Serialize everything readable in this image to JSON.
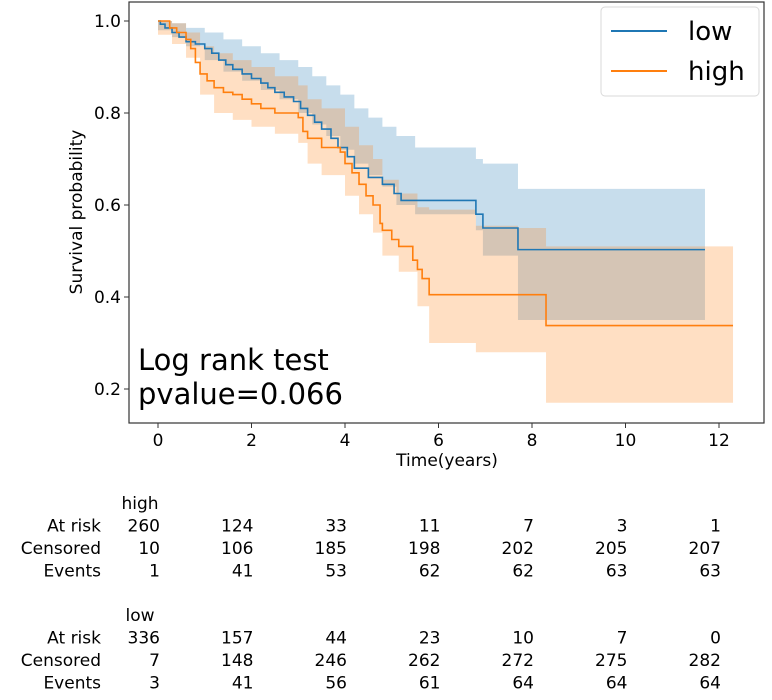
{
  "chart_data": {
    "type": "line",
    "subtype": "kaplan-meier",
    "title": "",
    "xlabel": "Time(years)",
    "ylabel": "Survival probability",
    "xlim": [
      -0.6,
      13.0
    ],
    "ylim": [
      0.14,
      1.04
    ],
    "xticks": [
      0,
      2,
      4,
      6,
      8,
      10,
      12
    ],
    "yticks": [
      0.2,
      0.4,
      0.6,
      0.8,
      1.0
    ],
    "ytick_labels": [
      "0.2",
      "0.4",
      "0.6",
      "0.8",
      "1.0"
    ],
    "grid": false,
    "legend": {
      "position": "top-right",
      "entries": [
        "low",
        "high"
      ]
    },
    "annotation": [
      "Log rank test",
      "pvalue=0.066"
    ],
    "series": [
      {
        "name": "low",
        "color": "#1f77b4",
        "ci_color": "#1f77b4",
        "steps": [
          [
            0.0,
            1.0
          ],
          [
            0.05,
            0.993
          ],
          [
            0.15,
            0.985
          ],
          [
            0.3,
            0.975
          ],
          [
            0.45,
            0.965
          ],
          [
            0.6,
            0.955
          ],
          [
            0.8,
            0.95
          ],
          [
            1.0,
            0.94
          ],
          [
            1.15,
            0.93
          ],
          [
            1.3,
            0.915
          ],
          [
            1.45,
            0.905
          ],
          [
            1.6,
            0.895
          ],
          [
            1.8,
            0.885
          ],
          [
            2.0,
            0.875
          ],
          [
            2.2,
            0.865
          ],
          [
            2.35,
            0.855
          ],
          [
            2.5,
            0.845
          ],
          [
            2.7,
            0.835
          ],
          [
            2.9,
            0.825
          ],
          [
            3.05,
            0.81
          ],
          [
            3.2,
            0.795
          ],
          [
            3.35,
            0.78
          ],
          [
            3.5,
            0.765
          ],
          [
            3.7,
            0.745
          ],
          [
            3.85,
            0.725
          ],
          [
            4.05,
            0.705
          ],
          [
            4.2,
            0.68
          ],
          [
            4.5,
            0.66
          ],
          [
            4.8,
            0.645
          ],
          [
            5.05,
            0.625
          ],
          [
            5.2,
            0.61
          ],
          [
            6.8,
            0.58
          ],
          [
            6.95,
            0.55
          ],
          [
            7.7,
            0.503
          ],
          [
            11.7,
            0.503
          ]
        ],
        "ci_upper": [
          [
            0.0,
            1.0
          ],
          [
            0.3,
            0.995
          ],
          [
            0.6,
            0.985
          ],
          [
            1.0,
            0.975
          ],
          [
            1.4,
            0.96
          ],
          [
            1.8,
            0.945
          ],
          [
            2.2,
            0.93
          ],
          [
            2.6,
            0.915
          ],
          [
            3.0,
            0.9
          ],
          [
            3.3,
            0.88
          ],
          [
            3.6,
            0.86
          ],
          [
            3.9,
            0.84
          ],
          [
            4.2,
            0.81
          ],
          [
            4.5,
            0.79
          ],
          [
            4.8,
            0.77
          ],
          [
            5.1,
            0.75
          ],
          [
            5.5,
            0.725
          ],
          [
            6.8,
            0.7
          ],
          [
            6.95,
            0.69
          ],
          [
            7.7,
            0.635
          ],
          [
            11.7,
            0.635
          ]
        ],
        "ci_lower": [
          [
            0.0,
            0.98
          ],
          [
            0.3,
            0.965
          ],
          [
            0.6,
            0.945
          ],
          [
            1.0,
            0.915
          ],
          [
            1.4,
            0.89
          ],
          [
            1.8,
            0.87
          ],
          [
            2.2,
            0.85
          ],
          [
            2.6,
            0.83
          ],
          [
            3.0,
            0.8
          ],
          [
            3.3,
            0.775
          ],
          [
            3.6,
            0.75
          ],
          [
            3.9,
            0.72
          ],
          [
            4.2,
            0.69
          ],
          [
            4.5,
            0.665
          ],
          [
            4.8,
            0.64
          ],
          [
            5.1,
            0.6
          ],
          [
            5.5,
            0.58
          ],
          [
            6.8,
            0.545
          ],
          [
            6.95,
            0.49
          ],
          [
            7.7,
            0.35
          ],
          [
            11.7,
            0.35
          ]
        ]
      },
      {
        "name": "high",
        "color": "#ff7f0e",
        "ci_color": "#ff7f0e",
        "steps": [
          [
            0.0,
            1.0
          ],
          [
            0.2,
            1.0
          ],
          [
            0.25,
            0.985
          ],
          [
            0.4,
            0.975
          ],
          [
            0.6,
            0.96
          ],
          [
            0.7,
            0.94
          ],
          [
            0.8,
            0.91
          ],
          [
            0.9,
            0.885
          ],
          [
            1.05,
            0.87
          ],
          [
            1.2,
            0.855
          ],
          [
            1.4,
            0.845
          ],
          [
            1.6,
            0.84
          ],
          [
            1.8,
            0.83
          ],
          [
            2.0,
            0.82
          ],
          [
            2.2,
            0.81
          ],
          [
            2.5,
            0.8
          ],
          [
            3.0,
            0.79
          ],
          [
            3.1,
            0.76
          ],
          [
            3.2,
            0.745
          ],
          [
            3.5,
            0.725
          ],
          [
            3.9,
            0.715
          ],
          [
            4.0,
            0.69
          ],
          [
            4.15,
            0.67
          ],
          [
            4.3,
            0.645
          ],
          [
            4.45,
            0.62
          ],
          [
            4.6,
            0.6
          ],
          [
            4.75,
            0.56
          ],
          [
            4.8,
            0.545
          ],
          [
            5.0,
            0.525
          ],
          [
            5.15,
            0.51
          ],
          [
            5.45,
            0.48
          ],
          [
            5.55,
            0.46
          ],
          [
            5.65,
            0.44
          ],
          [
            5.8,
            0.405
          ],
          [
            8.3,
            0.338
          ],
          [
            12.3,
            0.338
          ]
        ],
        "ci_upper": [
          [
            0.0,
            1.0
          ],
          [
            0.3,
            0.995
          ],
          [
            0.6,
            0.975
          ],
          [
            0.9,
            0.945
          ],
          [
            1.2,
            0.93
          ],
          [
            1.6,
            0.915
          ],
          [
            2.0,
            0.9
          ],
          [
            2.5,
            0.88
          ],
          [
            3.0,
            0.86
          ],
          [
            3.2,
            0.83
          ],
          [
            3.5,
            0.81
          ],
          [
            4.0,
            0.77
          ],
          [
            4.3,
            0.73
          ],
          [
            4.6,
            0.7
          ],
          [
            4.8,
            0.655
          ],
          [
            5.15,
            0.625
          ],
          [
            5.55,
            0.595
          ],
          [
            5.8,
            0.59
          ],
          [
            6.8,
            0.555
          ],
          [
            7.7,
            0.55
          ],
          [
            8.3,
            0.51
          ],
          [
            12.3,
            0.51
          ]
        ],
        "ci_lower": [
          [
            0.0,
            0.97
          ],
          [
            0.3,
            0.95
          ],
          [
            0.6,
            0.92
          ],
          [
            0.9,
            0.84
          ],
          [
            1.2,
            0.8
          ],
          [
            1.6,
            0.785
          ],
          [
            2.0,
            0.77
          ],
          [
            2.5,
            0.755
          ],
          [
            3.0,
            0.735
          ],
          [
            3.2,
            0.69
          ],
          [
            3.5,
            0.665
          ],
          [
            4.0,
            0.62
          ],
          [
            4.3,
            0.58
          ],
          [
            4.6,
            0.54
          ],
          [
            4.8,
            0.49
          ],
          [
            5.15,
            0.455
          ],
          [
            5.55,
            0.38
          ],
          [
            5.8,
            0.3
          ],
          [
            6.8,
            0.28
          ],
          [
            8.3,
            0.17
          ],
          [
            12.3,
            0.17
          ]
        ]
      }
    ],
    "risk_table": {
      "times": [
        0,
        2,
        4,
        6,
        8,
        10,
        12
      ],
      "row_labels": [
        "At risk",
        "Censored",
        "Events"
      ],
      "groups": [
        {
          "name": "high",
          "at_risk": [
            "260",
            "124",
            "33",
            "11",
            "7",
            "3",
            "1"
          ],
          "censored": [
            "10",
            "106",
            "185",
            "198",
            "202",
            "205",
            "207"
          ],
          "events": [
            "1",
            "41",
            "53",
            "62",
            "62",
            "63",
            "63"
          ]
        },
        {
          "name": "low",
          "at_risk": [
            "336",
            "157",
            "44",
            "23",
            "10",
            "7",
            "0"
          ],
          "censored": [
            "7",
            "148",
            "246",
            "262",
            "272",
            "275",
            "282"
          ],
          "events": [
            "3",
            "41",
            "56",
            "61",
            "64",
            "64",
            "64"
          ]
        }
      ]
    }
  }
}
